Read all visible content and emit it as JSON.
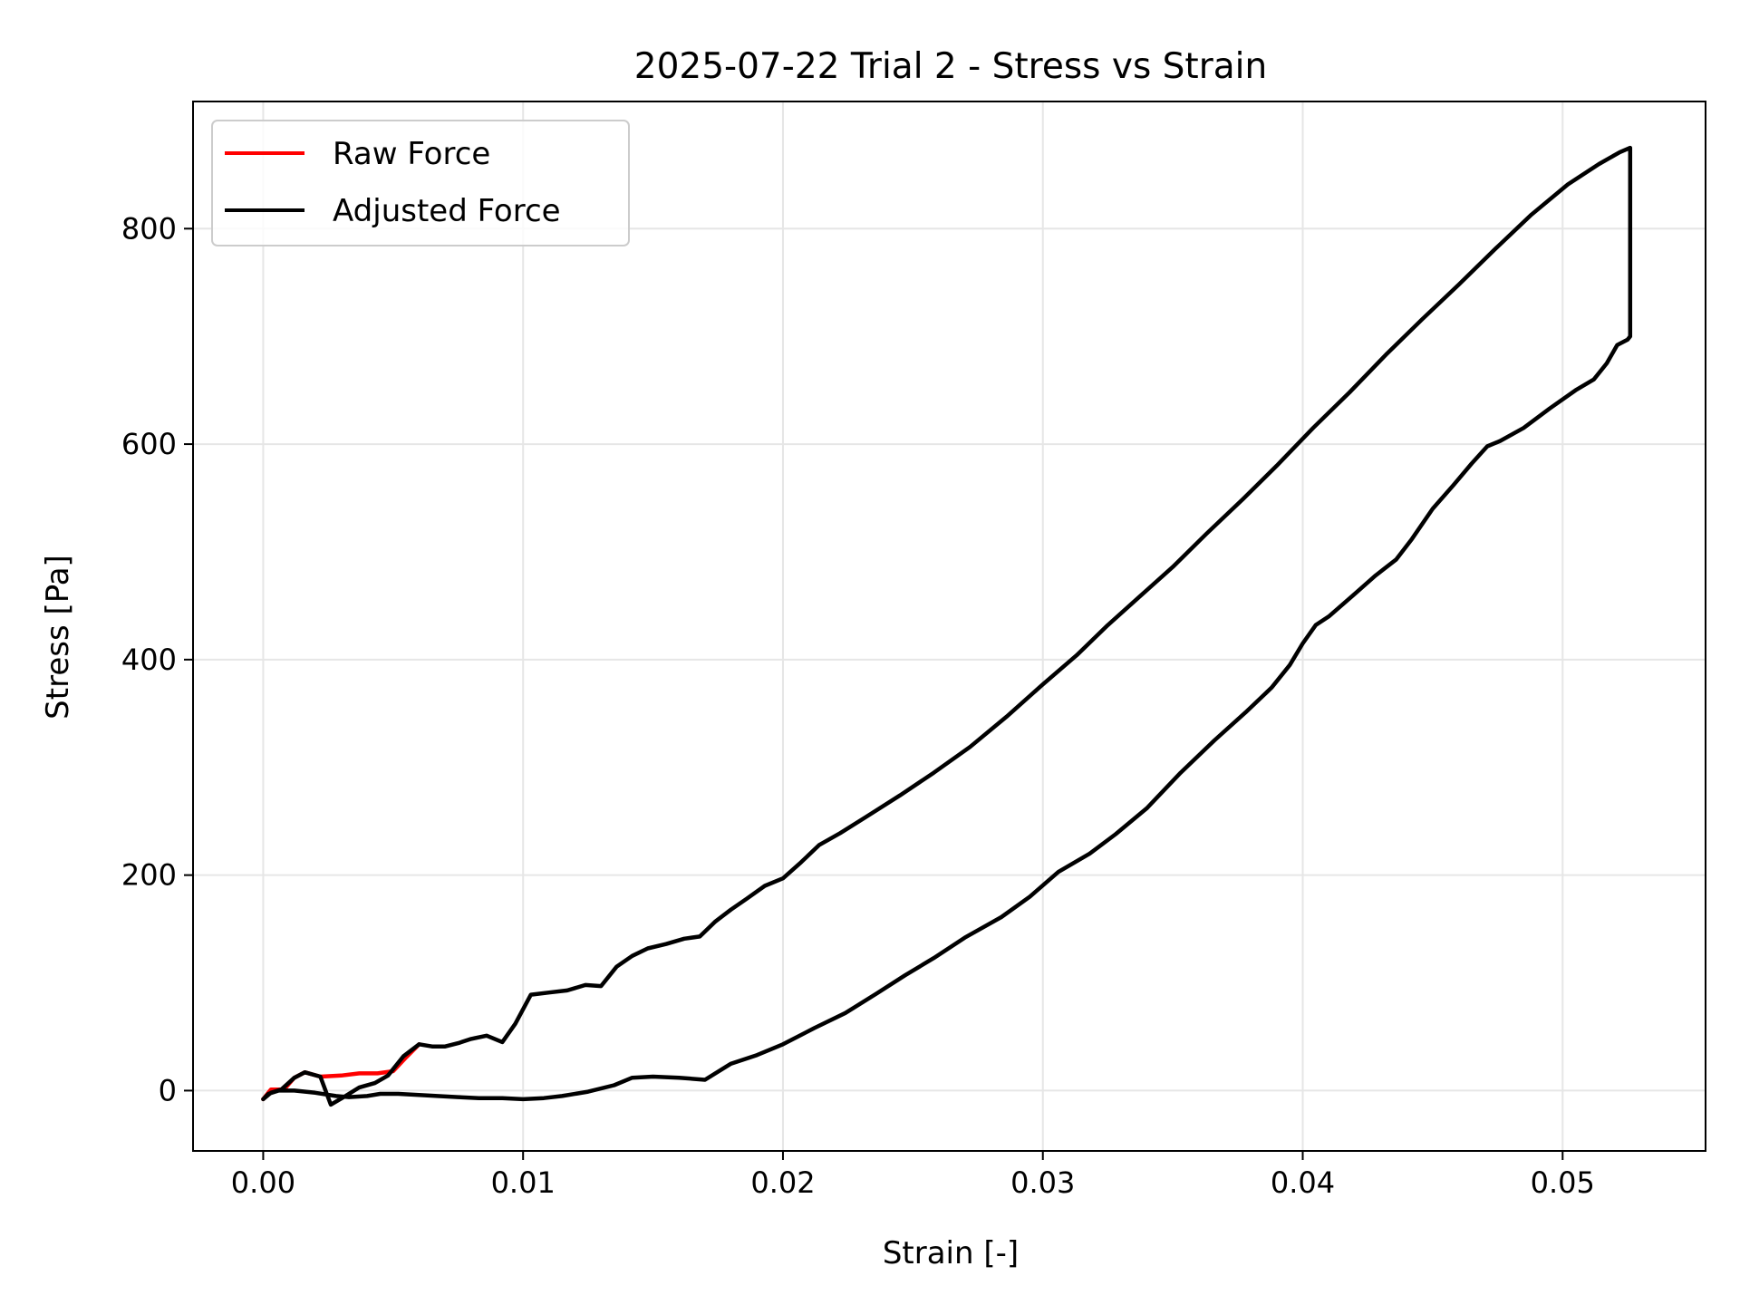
{
  "chart_data": {
    "type": "line",
    "title": "2025-07-22 Trial 2 - Stress vs Strain",
    "xlabel": "Strain [-]",
    "ylabel": "Stress [Pa]",
    "xlim": [
      -0.0027,
      0.0555
    ],
    "ylim": [
      -56,
      918
    ],
    "xticks": [
      0.0,
      0.01,
      0.02,
      0.03,
      0.04,
      0.05
    ],
    "xtick_labels": [
      "0.00",
      "0.01",
      "0.02",
      "0.03",
      "0.04",
      "0.05"
    ],
    "yticks": [
      0,
      200,
      400,
      600,
      800
    ],
    "ytick_labels": [
      "0",
      "200",
      "400",
      "600",
      "800"
    ],
    "grid": true,
    "legend_position": "top-left",
    "series": [
      {
        "name": "Raw Force",
        "color": "#ff0000",
        "points": [
          [
            0.0,
            -8
          ],
          [
            0.0003,
            1
          ],
          [
            0.0008,
            1
          ],
          [
            0.0012,
            12
          ],
          [
            0.0016,
            17
          ],
          [
            0.0022,
            13
          ],
          [
            0.003,
            14
          ],
          [
            0.0037,
            16
          ],
          [
            0.0044,
            16
          ],
          [
            0.005,
            18
          ],
          [
            0.0055,
            31
          ],
          [
            0.006,
            43
          ]
        ]
      },
      {
        "name": "Adjusted Force",
        "color": "#000000",
        "points": [
          [
            0.0,
            -8
          ],
          [
            0.0003,
            -2
          ],
          [
            0.0007,
            1
          ],
          [
            0.0012,
            12
          ],
          [
            0.0016,
            17
          ],
          [
            0.0022,
            13
          ],
          [
            0.0026,
            -13
          ],
          [
            0.0031,
            -6
          ],
          [
            0.0037,
            3
          ],
          [
            0.0043,
            7
          ],
          [
            0.0048,
            14
          ],
          [
            0.0054,
            32
          ],
          [
            0.006,
            43
          ],
          [
            0.0065,
            41
          ],
          [
            0.007,
            41
          ],
          [
            0.0075,
            44
          ],
          [
            0.008,
            48
          ],
          [
            0.0086,
            51
          ],
          [
            0.0092,
            45
          ],
          [
            0.0097,
            62
          ],
          [
            0.0103,
            89
          ],
          [
            0.011,
            91
          ],
          [
            0.0117,
            93
          ],
          [
            0.0124,
            98
          ],
          [
            0.013,
            97
          ],
          [
            0.0136,
            115
          ],
          [
            0.0142,
            125
          ],
          [
            0.0148,
            132
          ],
          [
            0.0155,
            136
          ],
          [
            0.0162,
            141
          ],
          [
            0.0168,
            143
          ],
          [
            0.0174,
            157
          ],
          [
            0.018,
            168
          ],
          [
            0.0186,
            178
          ],
          [
            0.0193,
            190
          ],
          [
            0.02,
            197
          ],
          [
            0.0207,
            212
          ],
          [
            0.0214,
            228
          ],
          [
            0.0222,
            239
          ],
          [
            0.0232,
            254
          ],
          [
            0.0245,
            274
          ],
          [
            0.0258,
            295
          ],
          [
            0.0272,
            319
          ],
          [
            0.0286,
            347
          ],
          [
            0.03,
            377
          ],
          [
            0.0313,
            404
          ],
          [
            0.0325,
            432
          ],
          [
            0.0337,
            458
          ],
          [
            0.035,
            486
          ],
          [
            0.0363,
            517
          ],
          [
            0.0377,
            549
          ],
          [
            0.039,
            580
          ],
          [
            0.0404,
            615
          ],
          [
            0.0418,
            648
          ],
          [
            0.0432,
            683
          ],
          [
            0.0446,
            716
          ],
          [
            0.046,
            748
          ],
          [
            0.0474,
            781
          ],
          [
            0.0488,
            813
          ],
          [
            0.0502,
            841
          ],
          [
            0.0514,
            860
          ],
          [
            0.0522,
            871
          ],
          [
            0.0526,
            875
          ],
          [
            0.0526,
            860
          ],
          [
            0.0526,
            800
          ],
          [
            0.0526,
            740
          ],
          [
            0.0526,
            700
          ],
          [
            0.0525,
            697
          ],
          [
            0.0521,
            692
          ],
          [
            0.0517,
            675
          ],
          [
            0.0512,
            660
          ],
          [
            0.0505,
            650
          ],
          [
            0.0495,
            633
          ],
          [
            0.0485,
            615
          ],
          [
            0.0476,
            603
          ],
          [
            0.0471,
            598
          ],
          [
            0.0465,
            582
          ],
          [
            0.0458,
            562
          ],
          [
            0.045,
            540
          ],
          [
            0.0442,
            512
          ],
          [
            0.0436,
            493
          ],
          [
            0.0428,
            478
          ],
          [
            0.042,
            461
          ],
          [
            0.041,
            440
          ],
          [
            0.0405,
            432
          ],
          [
            0.04,
            415
          ],
          [
            0.0395,
            395
          ],
          [
            0.0388,
            374
          ],
          [
            0.0378,
            351
          ],
          [
            0.0366,
            325
          ],
          [
            0.0353,
            295
          ],
          [
            0.034,
            262
          ],
          [
            0.0328,
            238
          ],
          [
            0.0318,
            220
          ],
          [
            0.0306,
            203
          ],
          [
            0.0295,
            180
          ],
          [
            0.0284,
            161
          ],
          [
            0.027,
            142
          ],
          [
            0.0258,
            123
          ],
          [
            0.0247,
            107
          ],
          [
            0.0236,
            90
          ],
          [
            0.0224,
            72
          ],
          [
            0.0212,
            58
          ],
          [
            0.02,
            43
          ],
          [
            0.019,
            33
          ],
          [
            0.018,
            25
          ],
          [
            0.017,
            10
          ],
          [
            0.016,
            12
          ],
          [
            0.015,
            13
          ],
          [
            0.0142,
            12
          ],
          [
            0.0135,
            5
          ],
          [
            0.0125,
            -1
          ],
          [
            0.0115,
            -5
          ],
          [
            0.0108,
            -7
          ],
          [
            0.01,
            -8
          ],
          [
            0.0092,
            -7
          ],
          [
            0.0083,
            -7
          ],
          [
            0.0075,
            -6
          ],
          [
            0.0067,
            -5
          ],
          [
            0.006,
            -4
          ],
          [
            0.0052,
            -3
          ],
          [
            0.0045,
            -3
          ],
          [
            0.004,
            -5
          ],
          [
            0.0033,
            -6
          ],
          [
            0.0028,
            -5
          ],
          [
            0.002,
            -2
          ],
          [
            0.0012,
            0
          ],
          [
            0.0006,
            0
          ],
          [
            0.0002,
            -3
          ],
          [
            0.0,
            -8
          ]
        ]
      }
    ]
  }
}
